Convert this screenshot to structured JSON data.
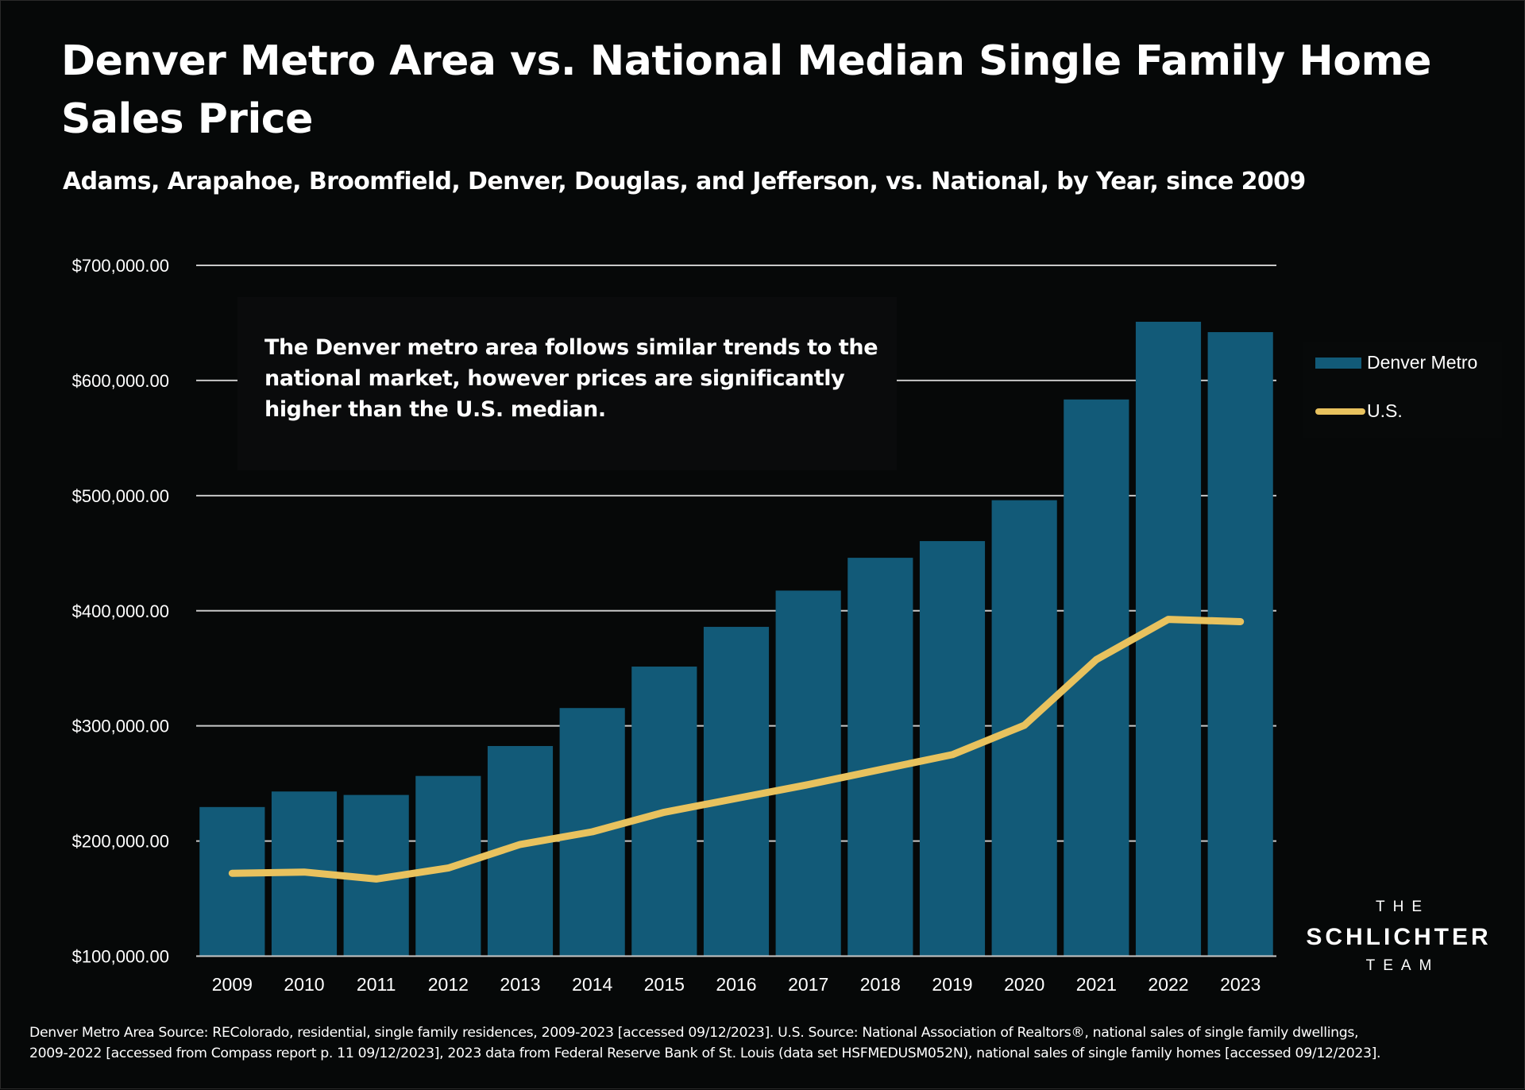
{
  "title": "Denver Metro Area vs. National Median Single Family Home Sales Price",
  "subtitle": "Adams, Arapahoe, Broomfield, Denver, Douglas, and Jefferson, vs. National, by Year, since 2009",
  "annotation": "The Denver metro area follows similar trends to the national market, however prices are significantly higher than the U.S. median.",
  "logo": {
    "line1": "THE",
    "line2": "SCHLICHTER",
    "line3": "TEAM"
  },
  "footnote": {
    "line1": "Denver Metro Area Source: REColorado, residential, single family residences, 2009-2023 [accessed 09/12/2023]. U.S. Source: National Association of Realtors®, national sales of single family dwellings,",
    "line2": "2009-2022 [accessed from Compass report p. 11 09/12/2023], 2023 data from Federal Reserve Bank of St. Louis (data set HSFMEDUSM052N), national sales of single family homes [accessed 09/12/2023]."
  },
  "colors": {
    "background": "#060808",
    "bar": "#125a78",
    "line": "#e8c25e",
    "grid": "#c8c8c8",
    "text": "#ffffff"
  },
  "chart_data": {
    "type": "bar",
    "title": "Denver Metro Area vs. National Median Single Family Home Sales Price",
    "subtitle": "Adams, Arapahoe, Broomfield, Denver, Douglas, and Jefferson, vs. National, by Year, since 2009",
    "xlabel": "",
    "ylabel": "",
    "categories": [
      "2009",
      "2010",
      "2011",
      "2012",
      "2013",
      "2014",
      "2015",
      "2016",
      "2017",
      "2018",
      "2019",
      "2020",
      "2021",
      "2022",
      "2023"
    ],
    "series": [
      {
        "name": "Denver Metro",
        "type": "bar",
        "values": [
          229500,
          243000,
          240000,
          256500,
          282500,
          315500,
          351500,
          386000,
          417500,
          446000,
          460500,
          496000,
          583500,
          651000,
          642000
        ]
      },
      {
        "name": "U.S.",
        "type": "line",
        "values": [
          172000,
          173000,
          167000,
          176500,
          197000,
          208000,
          225000,
          237000,
          249000,
          262000,
          275000,
          300500,
          357500,
          392500,
          390500
        ]
      }
    ],
    "ylim": [
      100000,
      700000
    ],
    "yticks": [
      100000,
      200000,
      300000,
      400000,
      500000,
      600000,
      700000
    ],
    "ytick_labels": [
      "$100,000.00",
      "$200,000.00",
      "$300,000.00",
      "$400,000.00",
      "$500,000.00",
      "$600,000.00",
      "$700,000.00"
    ],
    "grid": true,
    "legend": {
      "position": "right",
      "entries": [
        "Denver Metro",
        "U.S."
      ]
    }
  }
}
